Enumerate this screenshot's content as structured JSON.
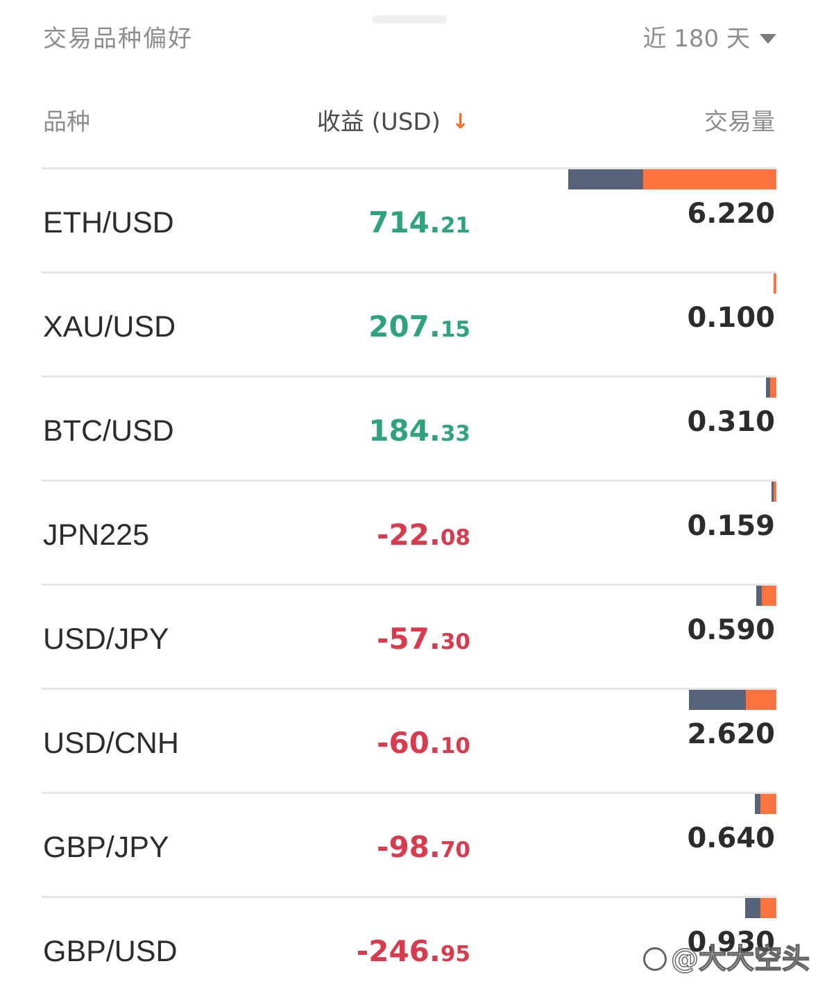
{
  "header": {
    "title": "交易品种偏好",
    "period_label": "近 180 天"
  },
  "columns": {
    "symbol": "品种",
    "pnl": "收益 (USD)",
    "volume": "交易量"
  },
  "rows": [
    {
      "symbol": "ETH/USD",
      "pnl_int": "714.",
      "pnl_dec": "21",
      "positive": true,
      "volume": "6.220",
      "bar_a": 108,
      "bar_b": 192
    },
    {
      "symbol": "XAU/USD",
      "pnl_int": "207.",
      "pnl_dec": "15",
      "positive": true,
      "volume": "0.100",
      "bar_a": 0,
      "bar_b": 4
    },
    {
      "symbol": "BTC/USD",
      "pnl_int": "184.",
      "pnl_dec": "33",
      "positive": true,
      "volume": "0.310",
      "bar_a": 6,
      "bar_b": 9
    },
    {
      "symbol": "JPN225",
      "pnl_int": "-22.",
      "pnl_dec": "08",
      "positive": false,
      "volume": "0.159",
      "bar_a": 3,
      "bar_b": 4
    },
    {
      "symbol": "USD/JPY",
      "pnl_int": "-57.",
      "pnl_dec": "30",
      "positive": false,
      "volume": "0.590",
      "bar_a": 8,
      "bar_b": 21
    },
    {
      "symbol": "USD/CNH",
      "pnl_int": "-60.",
      "pnl_dec": "10",
      "positive": false,
      "volume": "2.620",
      "bar_a": 82,
      "bar_b": 44
    },
    {
      "symbol": "GBP/JPY",
      "pnl_int": "-98.",
      "pnl_dec": "70",
      "positive": false,
      "volume": "0.640",
      "bar_a": 8,
      "bar_b": 23
    },
    {
      "symbol": "GBP/USD",
      "pnl_int": "-246.",
      "pnl_dec": "95",
      "positive": false,
      "volume": "0.930",
      "bar_a": 22,
      "bar_b": 23
    }
  ],
  "watermark": "@大大空头",
  "colors": {
    "positive": "#2fa37b",
    "negative": "#d93a4d",
    "bar_dark": "#566379",
    "bar_orange": "#fd7340",
    "sort_arrow": "#f2702c"
  }
}
